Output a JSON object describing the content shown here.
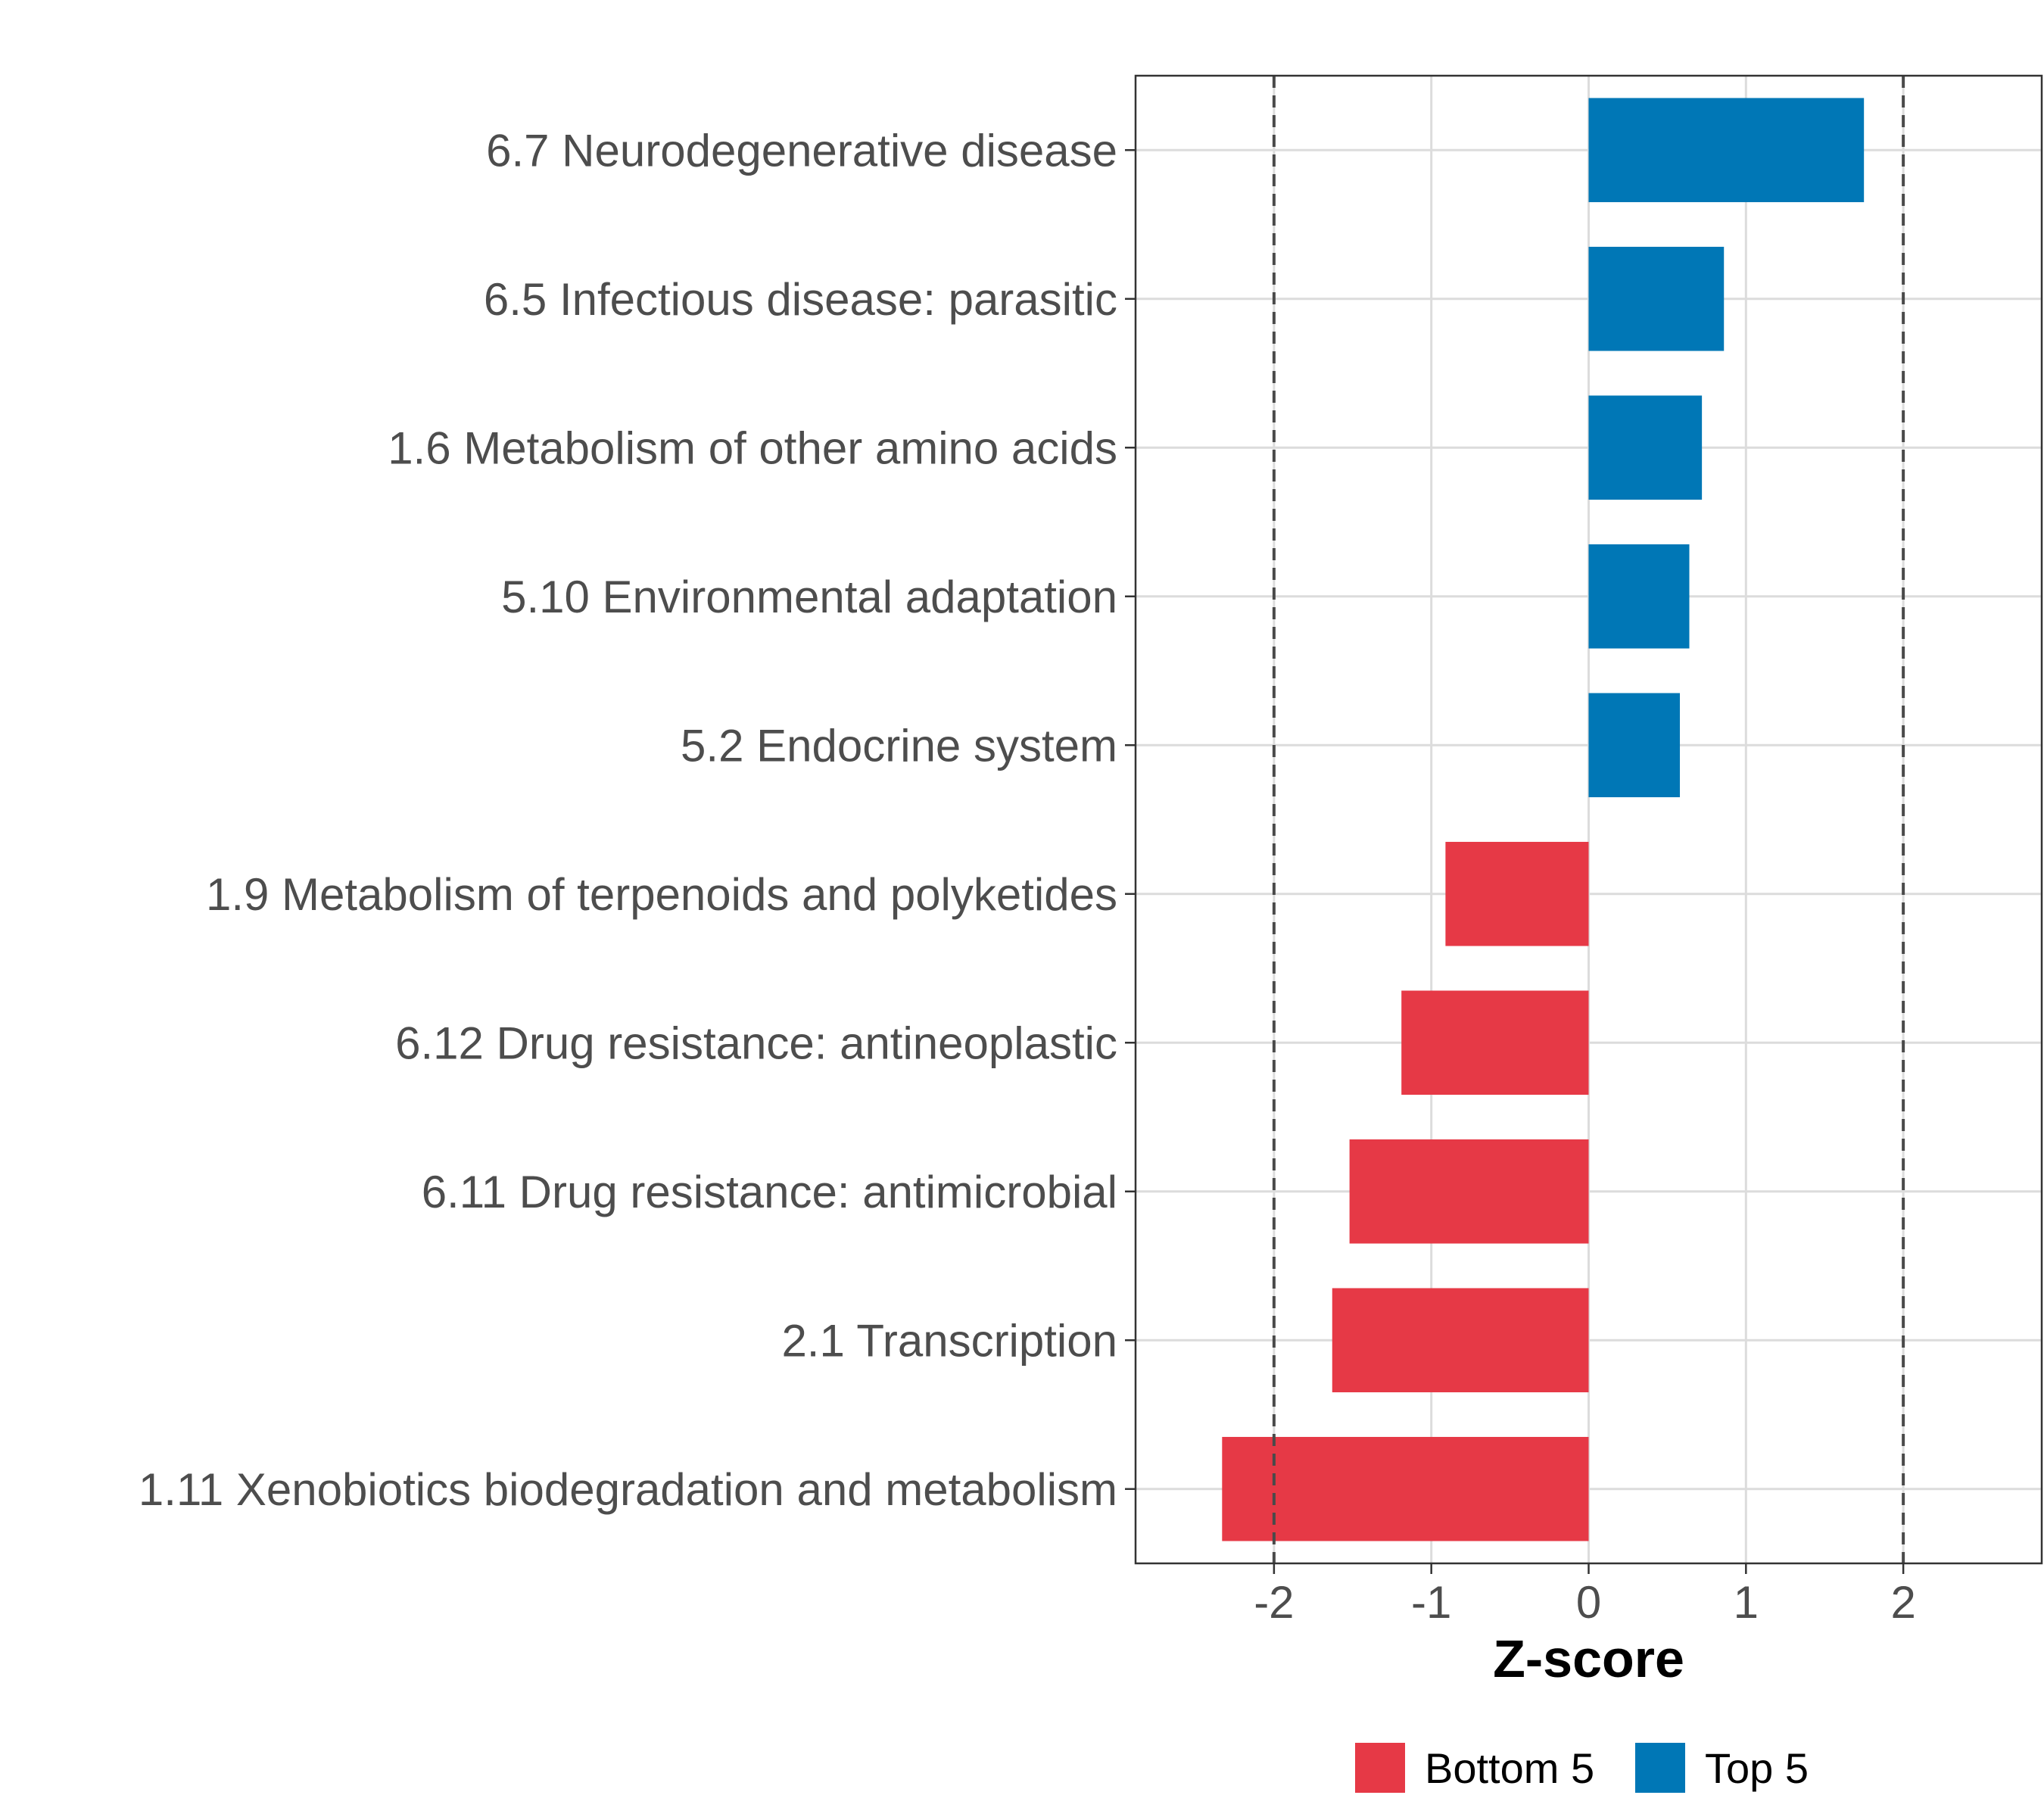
{
  "chart_data": {
    "type": "bar",
    "orientation": "horizontal",
    "categories": [
      "6.7 Neurodegenerative disease",
      "6.5 Infectious disease: parasitic",
      "1.6 Metabolism of other amino acids",
      "5.10 Environmental adaptation",
      "5.2 Endocrine system",
      "1.9 Metabolism of terpenoids and polyketides",
      "6.12 Drug resistance: antineoplastic",
      "6.11 Drug resistance: antimicrobial",
      "2.1 Transcription",
      "1.11 Xenobiotics biodegradation and metabolism"
    ],
    "values": [
      1.75,
      0.86,
      0.72,
      0.64,
      0.58,
      -0.91,
      -1.19,
      -1.52,
      -1.63,
      -2.33
    ],
    "groups": [
      "Top 5",
      "Top 5",
      "Top 5",
      "Top 5",
      "Top 5",
      "Bottom 5",
      "Bottom 5",
      "Bottom 5",
      "Bottom 5",
      "Bottom 5"
    ],
    "xlabel": "Z-score",
    "ylabel": "",
    "xlim": [
      -2.88,
      2.88
    ],
    "xticks": [
      -2,
      -1,
      0,
      1,
      2
    ],
    "xtick_labels": [
      "-2",
      "-1",
      "0",
      "1",
      "2"
    ],
    "reference_lines": [
      -2,
      2
    ],
    "grid": true,
    "legend": {
      "placement": "bottom",
      "entries": [
        {
          "label": "Bottom 5",
          "color": "#e63946"
        },
        {
          "label": "Top 5",
          "color": "#0077b6"
        }
      ]
    }
  }
}
